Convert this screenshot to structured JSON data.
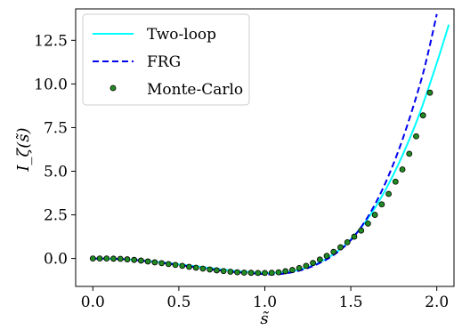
{
  "chart_data": {
    "type": "line",
    "title": "",
    "xlabel": "s̃",
    "ylabel": "I_ζ(s̃)",
    "xlim": [
      -0.1,
      2.1
    ],
    "ylim": [
      -1.6,
      14.3
    ],
    "xticks": [
      0.0,
      0.5,
      1.0,
      1.5,
      2.0
    ],
    "xtick_labels": [
      "0.0",
      "0.5",
      "1.0",
      "1.5",
      "2.0"
    ],
    "yticks": [
      0.0,
      2.5,
      5.0,
      7.5,
      10.0,
      12.5
    ],
    "ytick_labels": [
      "0.0",
      "2.5",
      "5.0",
      "7.5",
      "10.0",
      "12.5"
    ],
    "grid": false,
    "legend_position": "top-left",
    "series": [
      {
        "name": "Two-loop",
        "style": "solid",
        "color": "#00ffff",
        "x": [
          0.0,
          0.2,
          0.4,
          0.6,
          0.8,
          1.0,
          1.1,
          1.2,
          1.3,
          1.4,
          1.5,
          1.6,
          1.7,
          1.8,
          1.9,
          2.0,
          2.07
        ],
        "y": [
          0.0,
          -0.05,
          -0.22,
          -0.45,
          -0.68,
          -0.82,
          -0.8,
          -0.65,
          -0.3,
          0.25,
          1.1,
          2.3,
          3.9,
          5.9,
          8.3,
          11.2,
          13.4
        ]
      },
      {
        "name": "FRG",
        "style": "dashed",
        "color": "#0000ee",
        "x": [
          0.0,
          0.2,
          0.4,
          0.6,
          0.8,
          1.0,
          1.1,
          1.2,
          1.3,
          1.4,
          1.5,
          1.6,
          1.7,
          1.8,
          1.9,
          1.95,
          2.0
        ],
        "y": [
          0.0,
          -0.05,
          -0.25,
          -0.5,
          -0.75,
          -0.9,
          -0.88,
          -0.7,
          -0.35,
          0.2,
          1.05,
          2.4,
          4.3,
          6.8,
          9.9,
          11.8,
          14.0
        ]
      },
      {
        "name": "Monte-Carlo",
        "style": "markers",
        "color": "#228b22",
        "x": [
          0.0,
          0.04,
          0.08,
          0.12,
          0.16,
          0.2,
          0.24,
          0.28,
          0.32,
          0.36,
          0.4,
          0.44,
          0.48,
          0.52,
          0.56,
          0.6,
          0.64,
          0.68,
          0.72,
          0.76,
          0.8,
          0.84,
          0.88,
          0.92,
          0.96,
          1.0,
          1.04,
          1.08,
          1.12,
          1.16,
          1.2,
          1.24,
          1.28,
          1.32,
          1.36,
          1.4,
          1.44,
          1.48,
          1.52,
          1.56,
          1.6,
          1.64,
          1.68,
          1.72,
          1.76,
          1.8,
          1.84,
          1.88,
          1.92,
          1.96
        ],
        "y": [
          0.0,
          0.0,
          0.0,
          -0.01,
          -0.02,
          -0.05,
          -0.08,
          -0.12,
          -0.17,
          -0.22,
          -0.27,
          -0.32,
          -0.37,
          -0.42,
          -0.48,
          -0.53,
          -0.58,
          -0.63,
          -0.68,
          -0.72,
          -0.76,
          -0.79,
          -0.81,
          -0.82,
          -0.83,
          -0.83,
          -0.82,
          -0.79,
          -0.73,
          -0.66,
          -0.55,
          -0.42,
          -0.26,
          -0.06,
          0.15,
          0.38,
          0.64,
          0.93,
          1.25,
          1.6,
          2.0,
          2.5,
          3.1,
          3.7,
          4.4,
          5.1,
          6.0,
          7.0,
          8.2,
          9.5
        ]
      }
    ]
  }
}
